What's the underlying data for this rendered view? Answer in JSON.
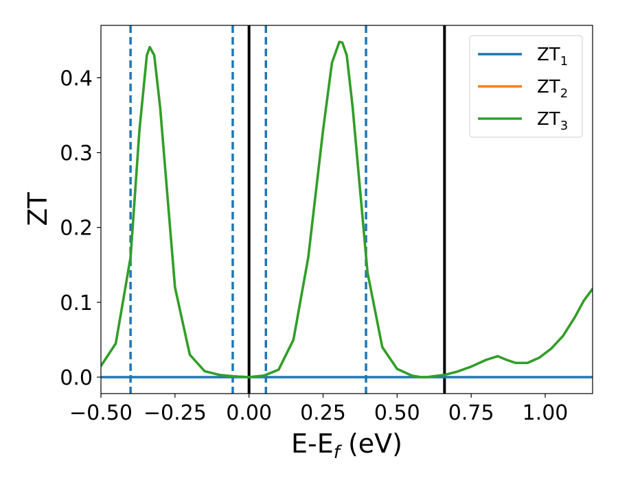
{
  "chart_data": {
    "type": "line",
    "title": "",
    "xlabel": "E-E",
    "xlabel_sub": "f",
    "xlabel_unit": " (eV)",
    "ylabel": "ZT",
    "xlim": [
      -0.5,
      1.16
    ],
    "ylim": [
      -0.022,
      0.47
    ],
    "grid": false,
    "legend_position": "top-right",
    "x_ticks": [
      -0.5,
      -0.25,
      0.0,
      0.25,
      0.5,
      0.75,
      1.0
    ],
    "x_tick_labels": [
      "−0.50",
      "−0.25",
      "0.00",
      "0.25",
      "0.50",
      "0.75",
      "1.00"
    ],
    "y_ticks": [
      0.0,
      0.1,
      0.2,
      0.3,
      0.4
    ],
    "y_tick_labels": [
      "0.0",
      "0.1",
      "0.2",
      "0.3",
      "0.4"
    ],
    "vertical_lines": [
      {
        "x": -0.4,
        "style": "dashed",
        "color": "#1f77b4"
      },
      {
        "x": -0.055,
        "style": "dashed",
        "color": "#1f77b4"
      },
      {
        "x": 0.0,
        "style": "solid",
        "color": "#000000"
      },
      {
        "x": 0.057,
        "style": "dashed",
        "color": "#1f77b4"
      },
      {
        "x": 0.395,
        "style": "dashed",
        "color": "#1f77b4"
      },
      {
        "x": 0.66,
        "style": "solid",
        "color": "#000000"
      }
    ],
    "series": [
      {
        "name": "ZT",
        "name_sub": "1",
        "color": "#1f77b4",
        "x": [
          -0.5,
          1.16
        ],
        "y": [
          0.0,
          0.0
        ]
      },
      {
        "name": "ZT",
        "name_sub": "2",
        "color": "#ff7f0e",
        "x": [
          -0.5,
          -0.45,
          -0.4,
          -0.37,
          -0.345,
          -0.335,
          -0.32,
          -0.3,
          -0.25,
          -0.2,
          -0.15,
          -0.1,
          -0.05,
          0.0,
          0.05,
          0.1,
          0.15,
          0.2,
          0.25,
          0.28,
          0.305,
          0.315,
          0.33,
          0.35,
          0.4,
          0.45,
          0.5,
          0.55,
          0.58,
          0.6,
          0.66,
          0.7,
          0.75,
          0.8,
          0.84,
          0.87,
          0.9,
          0.94,
          0.98,
          1.02,
          1.06,
          1.1,
          1.13,
          1.16
        ],
        "y": [
          0.015,
          0.045,
          0.16,
          0.33,
          0.43,
          0.441,
          0.43,
          0.36,
          0.12,
          0.03,
          0.008,
          0.003,
          0.001,
          0.0,
          0.002,
          0.01,
          0.05,
          0.16,
          0.33,
          0.42,
          0.448,
          0.447,
          0.43,
          0.36,
          0.14,
          0.04,
          0.011,
          0.002,
          0.0,
          0.0,
          0.003,
          0.007,
          0.014,
          0.023,
          0.028,
          0.023,
          0.019,
          0.019,
          0.026,
          0.038,
          0.055,
          0.08,
          0.102,
          0.118
        ]
      },
      {
        "name": "ZT",
        "name_sub": "3",
        "color": "#2ca02c",
        "x": [
          -0.5,
          -0.45,
          -0.4,
          -0.37,
          -0.345,
          -0.335,
          -0.32,
          -0.3,
          -0.25,
          -0.2,
          -0.15,
          -0.1,
          -0.05,
          0.0,
          0.05,
          0.1,
          0.15,
          0.2,
          0.25,
          0.28,
          0.305,
          0.315,
          0.33,
          0.35,
          0.4,
          0.45,
          0.5,
          0.55,
          0.58,
          0.6,
          0.66,
          0.7,
          0.75,
          0.8,
          0.84,
          0.87,
          0.9,
          0.94,
          0.98,
          1.02,
          1.06,
          1.1,
          1.13,
          1.16
        ],
        "y": [
          0.015,
          0.045,
          0.16,
          0.33,
          0.43,
          0.441,
          0.43,
          0.36,
          0.12,
          0.03,
          0.008,
          0.003,
          0.001,
          0.0,
          0.002,
          0.01,
          0.05,
          0.16,
          0.33,
          0.42,
          0.448,
          0.447,
          0.43,
          0.36,
          0.14,
          0.04,
          0.011,
          0.002,
          0.0,
          0.0,
          0.003,
          0.007,
          0.014,
          0.023,
          0.028,
          0.023,
          0.019,
          0.019,
          0.026,
          0.038,
          0.055,
          0.08,
          0.102,
          0.118
        ]
      }
    ]
  }
}
